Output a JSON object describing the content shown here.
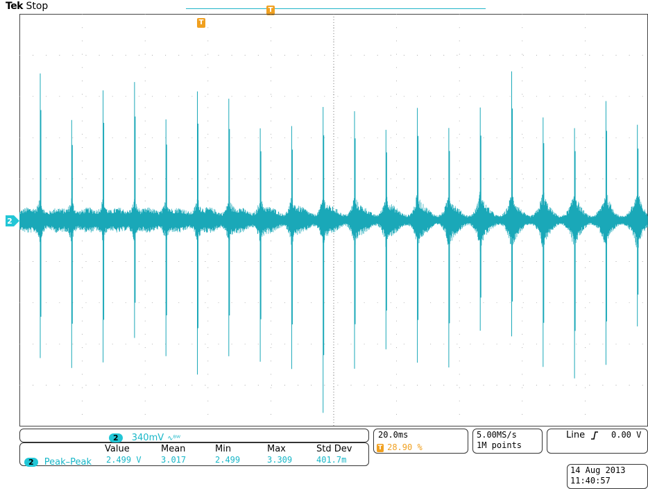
{
  "header": {
    "brand": "Tek",
    "state": "Stop"
  },
  "trigger_marker_label": "T",
  "channel_marker_label": "2",
  "channel": {
    "number": "2",
    "scale": "340mV",
    "coupling_icon": "ac-bandwidth-limit-icon"
  },
  "measurement": {
    "headers": [
      "Value",
      "Mean",
      "Min",
      "Max",
      "Std Dev"
    ],
    "channel": "2",
    "name": "Peak–Peak",
    "values": [
      "2.499 V",
      "3.017",
      "2.499",
      "3.309",
      "401.7m"
    ]
  },
  "timebase": {
    "scale": "20.0ms",
    "trigger_position": "28.90 %"
  },
  "acquisition": {
    "sample_rate": "5.00MS/s",
    "record_length": "1M points"
  },
  "trigger": {
    "source": "Line",
    "slope_icon": "rising-edge-icon",
    "level": "0.00 V"
  },
  "datetime": {
    "date": "14 Aug 2013",
    "time": "11:40:57"
  },
  "colors": {
    "trace": "#1aa8b8",
    "channel": "#22c6d6",
    "trigger": "#f0a020",
    "grid": "#8a8a8a"
  }
}
